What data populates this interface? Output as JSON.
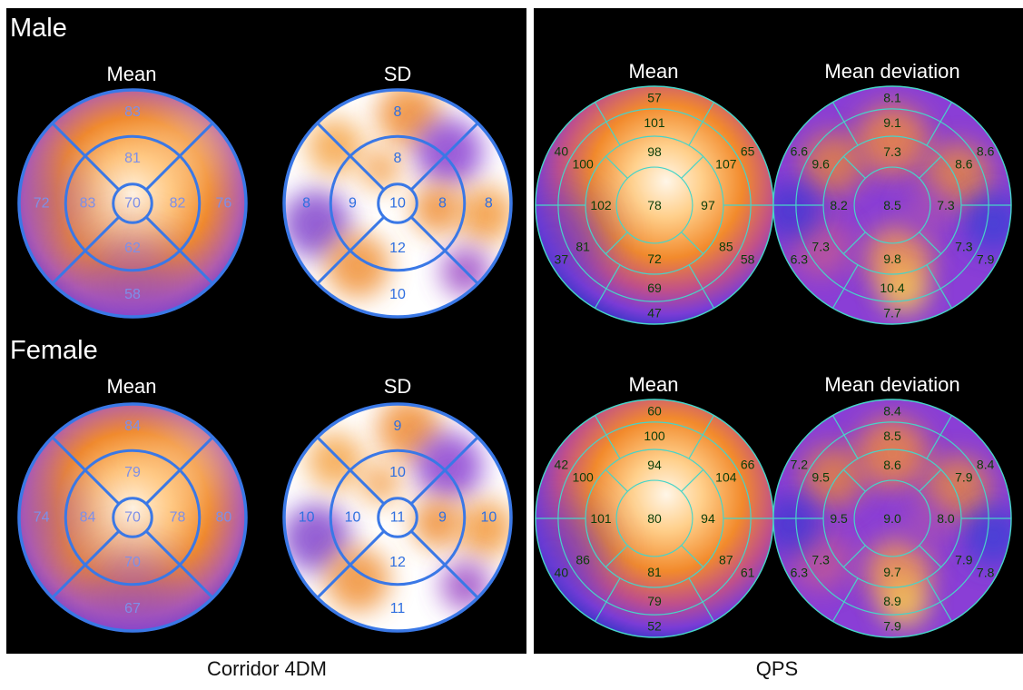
{
  "panels": {
    "left": {
      "footer": "Corridor 4DM",
      "groups": [
        {
          "label": "Male",
          "plots": [
            {
              "title": "Mean",
              "kind": "corridor-mean",
              "values": {
                "center": "70",
                "mid": [
                  "81",
                  "82",
                  "62",
                  "83"
                ],
                "outer": [
                  "83",
                  "76",
                  "58",
                  "72"
                ]
              }
            },
            {
              "title": "SD",
              "kind": "corridor-sd",
              "values": {
                "center": "10",
                "mid": [
                  "8",
                  "8",
                  "12",
                  "9"
                ],
                "outer": [
                  "8",
                  "8",
                  "10",
                  "8"
                ]
              }
            }
          ]
        },
        {
          "label": "Female",
          "plots": [
            {
              "title": "Mean",
              "kind": "corridor-mean",
              "values": {
                "center": "70",
                "mid": [
                  "79",
                  "78",
                  "70",
                  "84"
                ],
                "outer": [
                  "84",
                  "80",
                  "67",
                  "74"
                ]
              }
            },
            {
              "title": "SD",
              "kind": "corridor-sd",
              "values": {
                "center": "11",
                "mid": [
                  "10",
                  "9",
                  "12",
                  "10"
                ],
                "outer": [
                  "9",
                  "10",
                  "11",
                  "10"
                ]
              }
            }
          ]
        }
      ]
    },
    "right": {
      "footer": "QPS",
      "groups": [
        {
          "plots": [
            {
              "title": "Mean",
              "kind": "qps-mean",
              "values": {
                "apex": "78",
                "mid": [
                  "98",
                  "97",
                  "72",
                  "102"
                ],
                "basalInner": [
                  "101",
                  "107",
                  "85",
                  "69",
                  "81",
                  "100"
                ],
                "basalOuter": [
                  "57",
                  "65",
                  "58",
                  "47",
                  "37",
                  "40"
                ]
              }
            },
            {
              "title": "Mean deviation",
              "kind": "qps-dev",
              "values": {
                "apex": "8.5",
                "mid": [
                  "7.3",
                  "7.3",
                  "9.8",
                  "8.2"
                ],
                "basalInner": [
                  "9.1",
                  "8.6",
                  "7.3",
                  "10.4",
                  "7.3",
                  "9.6"
                ],
                "basalOuter": [
                  "8.1",
                  "8.6",
                  "7.9",
                  "7.7",
                  "6.3",
                  "6.6"
                ]
              }
            }
          ]
        },
        {
          "plots": [
            {
              "title": "Mean",
              "kind": "qps-mean",
              "values": {
                "apex": "80",
                "mid": [
                  "94",
                  "94",
                  "81",
                  "101"
                ],
                "basalInner": [
                  "100",
                  "104",
                  "87",
                  "79",
                  "86",
                  "100"
                ],
                "basalOuter": [
                  "60",
                  "66",
                  "61",
                  "52",
                  "40",
                  "42"
                ]
              }
            },
            {
              "title": "Mean deviation",
              "kind": "qps-dev",
              "values": {
                "apex": "9.0",
                "mid": [
                  "8.6",
                  "8.0",
                  "9.7",
                  "9.5"
                ],
                "basalInner": [
                  "8.5",
                  "7.9",
                  "7.9",
                  "8.9",
                  "7.3",
                  "9.5"
                ],
                "basalOuter": [
                  "8.4",
                  "8.4",
                  "7.8",
                  "7.9",
                  "6.3",
                  "7.2"
                ]
              }
            }
          ]
        }
      ]
    }
  },
  "colors": {
    "corridor_line": "#3a78e6",
    "corridor_text": "#7d8fe8",
    "sd_text": "#2f6fe0",
    "qps_line": "#47d4c8",
    "qps_text": "#0a3d08",
    "label_white": "#ffffff"
  }
}
